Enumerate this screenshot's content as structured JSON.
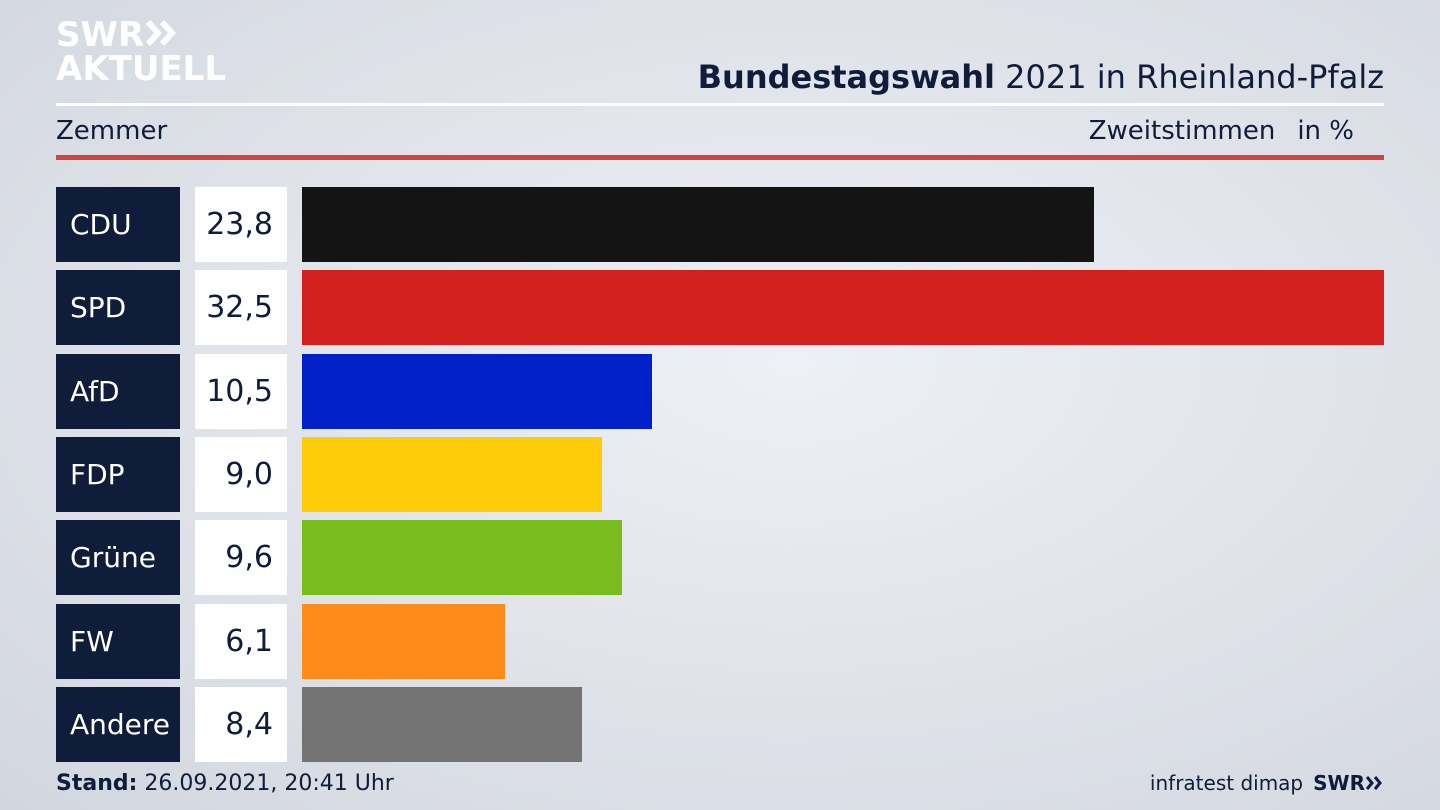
{
  "brand": {
    "line1": "SWR",
    "line2": "AKTUELL"
  },
  "header": {
    "title_bold": "Bundestagswahl",
    "title_rest": "2021 in Rheinland-Pfalz",
    "subtitle": "Zemmer",
    "measure": "Zweitstimmen",
    "unit": "in %"
  },
  "footer": {
    "stand_label": "Stand:",
    "stand_value": "26.09.2021, 20:41 Uhr",
    "source": "infratest dimap",
    "logo": "SWR"
  },
  "chart_data": {
    "type": "bar",
    "orientation": "horizontal",
    "categories": [
      "CDU",
      "SPD",
      "AfD",
      "FDP",
      "Grüne",
      "FW",
      "Andere"
    ],
    "values": [
      23.8,
      32.5,
      10.5,
      9.0,
      9.6,
      6.1,
      8.4
    ],
    "value_labels": [
      "23,8",
      "32,5",
      "10,5",
      "9,0",
      "9,6",
      "6,1",
      "8,4"
    ],
    "colors": [
      "#141414",
      "#d52020",
      "#0021c8",
      "#ffcc0a",
      "#78bc1e",
      "#ff8c1a",
      "#747474"
    ],
    "xlim": [
      0,
      32.5
    ],
    "grid": false
  }
}
